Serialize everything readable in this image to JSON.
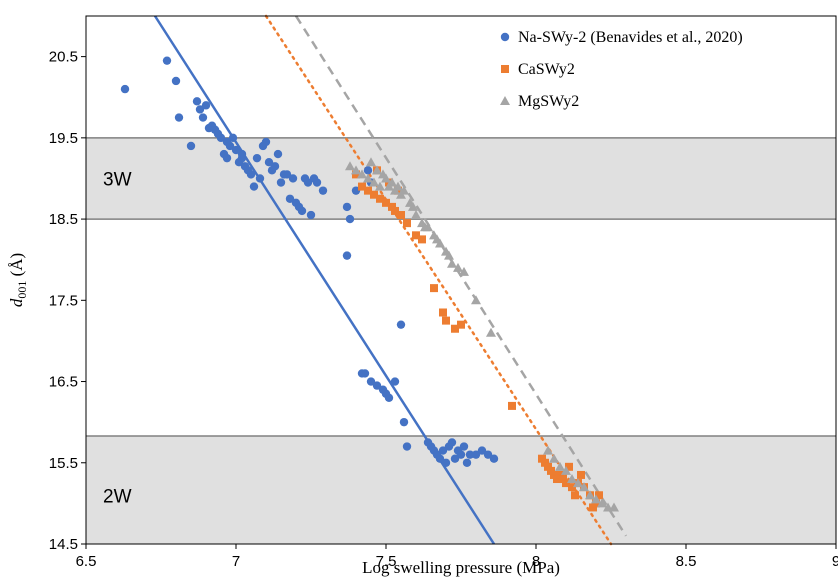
{
  "chart_data": {
    "type": "scatter",
    "xlabel": "Log swelling pressure (MPa)",
    "ylabel_main": "d",
    "ylabel_sub": "001",
    "ylabel_unit": " (Å)",
    "xlim": [
      6.5,
      9.0
    ],
    "ylim": [
      14.5,
      21.0
    ],
    "xticks": [
      {
        "value": 6.5,
        "label": "6.5"
      },
      {
        "value": 7.0,
        "label": "7"
      },
      {
        "value": 7.5,
        "label": "7.5"
      },
      {
        "value": 8.0,
        "label": "8"
      },
      {
        "value": 8.5,
        "label": "8.5"
      },
      {
        "value": 9.0,
        "label": "9"
      }
    ],
    "yticks": [
      {
        "value": 14.5,
        "label": "14.5"
      },
      {
        "value": 15.5,
        "label": "15.5"
      },
      {
        "value": 16.5,
        "label": "16.5"
      },
      {
        "value": 17.5,
        "label": "17.5"
      },
      {
        "value": 18.5,
        "label": "18.5"
      },
      {
        "value": 19.5,
        "label": "19.5"
      },
      {
        "value": 20.5,
        "label": "20.5"
      }
    ],
    "grid": false,
    "legend_position": "top-right",
    "bands": [
      {
        "label": "3W",
        "y0": 18.5,
        "y1": 19.5,
        "label_y": 19.0,
        "color": "#e0e0e0"
      },
      {
        "label": "2W",
        "y0": 14.5,
        "y1": 15.83,
        "label_y": 15.1,
        "color": "#e0e0e0"
      }
    ],
    "series": [
      {
        "name": "Na-SWy-2 (Benavides et al., 2020)",
        "marker": "circle",
        "color": "#4472c4",
        "x": [
          6.63,
          6.77,
          6.8,
          6.81,
          6.85,
          6.87,
          6.88,
          6.89,
          6.9,
          6.91,
          6.92,
          6.93,
          6.94,
          6.95,
          6.96,
          6.97,
          6.98,
          6.99,
          7.0,
          7.01,
          7.02,
          7.03,
          7.04,
          7.05,
          7.06,
          7.07,
          7.08,
          7.1,
          7.12,
          7.13,
          7.15,
          7.16,
          7.18,
          7.2,
          7.21,
          7.22,
          7.23,
          7.25,
          7.27,
          7.29,
          6.97,
          7.02,
          7.09,
          7.11,
          7.14,
          7.17,
          7.19,
          7.24,
          7.26,
          7.37,
          7.38,
          7.4,
          7.42,
          7.43,
          7.45,
          7.47,
          7.49,
          7.5,
          7.51,
          7.53,
          7.55,
          7.56,
          7.57,
          7.44,
          7.64,
          7.65,
          7.66,
          7.67,
          7.68,
          7.69,
          7.7,
          7.71,
          7.72,
          7.73,
          7.74,
          7.75,
          7.76,
          7.77,
          7.78,
          7.8,
          7.82,
          7.84,
          7.86,
          7.37,
          7.45
        ],
        "y": [
          20.1,
          20.45,
          20.2,
          19.75,
          19.4,
          19.95,
          19.85,
          19.75,
          19.9,
          19.62,
          19.65,
          19.6,
          19.55,
          19.5,
          19.3,
          19.45,
          19.4,
          19.5,
          19.35,
          19.2,
          19.25,
          19.15,
          19.1,
          19.05,
          18.9,
          19.25,
          19.0,
          19.45,
          19.1,
          19.15,
          18.95,
          19.05,
          18.75,
          18.7,
          18.65,
          18.6,
          19.0,
          18.55,
          18.95,
          18.85,
          19.25,
          19.3,
          19.4,
          19.2,
          19.3,
          19.05,
          19.0,
          18.95,
          19.0,
          18.05,
          18.5,
          18.85,
          16.6,
          16.6,
          16.5,
          16.45,
          16.4,
          16.35,
          16.3,
          16.5,
          17.2,
          16.0,
          15.7,
          19.1,
          15.75,
          15.7,
          15.65,
          15.6,
          15.55,
          15.65,
          15.5,
          15.7,
          15.75,
          15.55,
          15.65,
          15.6,
          15.7,
          15.5,
          15.6,
          15.6,
          15.65,
          15.6,
          15.55,
          18.65,
          18.95
        ]
      },
      {
        "name": "CaSWy2",
        "marker": "square",
        "color": "#ed7d31",
        "x": [
          7.4,
          7.42,
          7.44,
          7.46,
          7.48,
          7.5,
          7.52,
          7.53,
          7.55,
          7.57,
          7.6,
          7.62,
          7.66,
          7.69,
          7.7,
          7.73,
          7.75,
          7.92,
          8.02,
          8.03,
          8.04,
          8.05,
          8.06,
          8.07,
          8.08,
          8.09,
          8.1,
          8.11,
          8.12,
          8.13,
          8.14,
          8.15,
          8.16,
          8.18,
          8.19,
          8.2,
          8.21,
          7.47,
          7.51,
          7.54
        ],
        "y": [
          19.05,
          18.9,
          18.85,
          18.8,
          18.75,
          18.7,
          18.65,
          18.6,
          18.55,
          18.45,
          18.3,
          18.25,
          17.65,
          17.35,
          17.25,
          17.15,
          17.2,
          16.2,
          15.55,
          15.5,
          15.45,
          15.4,
          15.35,
          15.3,
          15.35,
          15.3,
          15.25,
          15.45,
          15.2,
          15.1,
          15.25,
          15.35,
          15.2,
          15.1,
          14.95,
          15.0,
          15.1,
          19.1,
          18.95,
          18.85
        ]
      },
      {
        "name": "MgSWy2",
        "marker": "triangle",
        "color": "#a5a5a5",
        "x": [
          7.38,
          7.4,
          7.42,
          7.44,
          7.46,
          7.48,
          7.5,
          7.52,
          7.54,
          7.56,
          7.58,
          7.6,
          7.62,
          7.64,
          7.66,
          7.68,
          7.7,
          7.72,
          7.74,
          7.76,
          7.8,
          7.85,
          7.45,
          7.47,
          7.49,
          7.51,
          7.53,
          7.55,
          7.59,
          7.63,
          7.67,
          7.71,
          8.04,
          8.06,
          8.08,
          8.1,
          8.12,
          8.14,
          8.16,
          8.18,
          8.2,
          8.22,
          8.24,
          8.26
        ],
        "y": [
          19.15,
          19.1,
          19.05,
          19.0,
          18.95,
          18.9,
          19.0,
          18.95,
          18.9,
          18.85,
          18.7,
          18.55,
          18.45,
          18.4,
          18.3,
          18.2,
          18.1,
          17.95,
          17.9,
          17.85,
          17.5,
          17.1,
          19.2,
          19.1,
          19.05,
          18.9,
          18.85,
          18.8,
          18.65,
          18.4,
          18.25,
          18.05,
          15.65,
          15.55,
          15.45,
          15.4,
          15.3,
          15.25,
          15.2,
          15.1,
          15.05,
          15.0,
          14.95,
          14.95
        ]
      }
    ],
    "trendlines": [
      {
        "series": "Na-SWy-2 (Benavides et al., 2020)",
        "style": "solid",
        "color": "#4472c4",
        "x": [
          6.73,
          7.86
        ],
        "y": [
          21.0,
          14.5
        ]
      },
      {
        "series": "CaSWy2",
        "style": "dotted",
        "color": "#ed7d31",
        "x": [
          7.1,
          8.25
        ],
        "y": [
          21.0,
          14.5
        ]
      },
      {
        "series": "MgSWy2",
        "style": "dashed",
        "color": "#a5a5a5",
        "x": [
          7.2,
          8.3
        ],
        "y": [
          21.0,
          14.6
        ]
      }
    ]
  }
}
